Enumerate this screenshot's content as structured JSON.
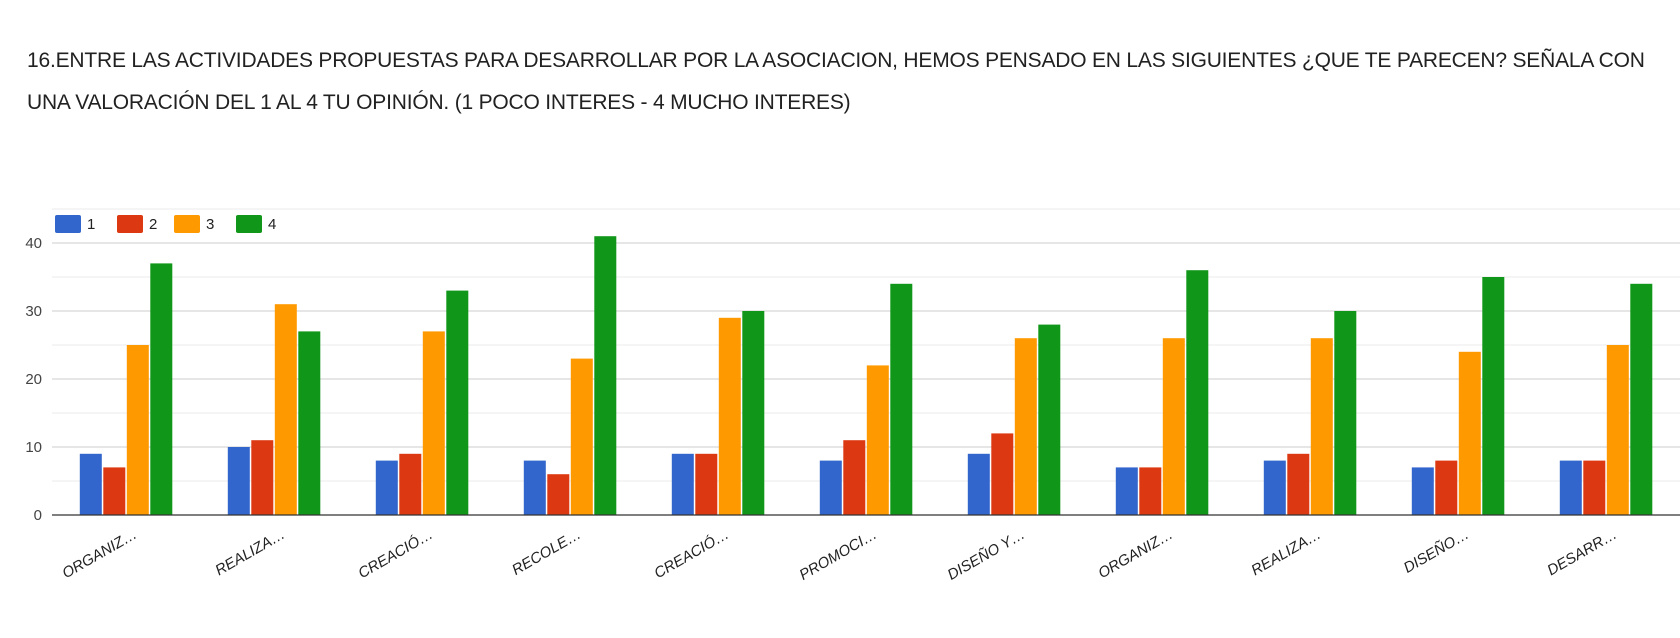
{
  "title": "16.ENTRE LAS ACTIVIDADES PROPUESTAS PARA DESARROLLAR POR LA ASOCIACION, HEMOS PENSADO EN LAS SIGUIENTES ¿QUE TE PARECEN? SEÑALA CON UNA VALORACIÓN  DEL 1 AL 4 TU OPINIÓN. (1 POCO INTERES - 4 MUCHO INTERES)",
  "chart_data": {
    "type": "bar",
    "title": "16.ENTRE LAS ACTIVIDADES PROPUESTAS PARA DESARROLLAR POR LA ASOCIACION, HEMOS PENSADO EN LAS SIGUIENTES ¿QUE TE PARECEN? SEÑALA CON UNA VALORACIÓN  DEL 1 AL 4 TU OPINIÓN. (1 POCO INTERES - 4 MUCHO INTERES)",
    "categories": [
      "ORGANIZ…",
      "REALIZA…",
      "CREACIÓ…",
      "RECOLE…",
      "CREACIÓ…",
      "PROMOCI…",
      "DISEÑO Y…",
      "ORGANIZ…",
      "REALIZA…",
      "DISEÑO…",
      "DESARR…"
    ],
    "series": [
      {
        "name": "1",
        "color": "#3366cc",
        "values": [
          9,
          10,
          8,
          8,
          9,
          8,
          9,
          7,
          8,
          7,
          8
        ]
      },
      {
        "name": "2",
        "color": "#dc3912",
        "values": [
          7,
          11,
          9,
          6,
          9,
          11,
          12,
          7,
          9,
          8,
          8
        ]
      },
      {
        "name": "3",
        "color": "#ff9900",
        "values": [
          25,
          31,
          27,
          23,
          29,
          22,
          26,
          26,
          26,
          24,
          25
        ]
      },
      {
        "name": "4",
        "color": "#109618",
        "values": [
          37,
          27,
          33,
          41,
          30,
          34,
          28,
          36,
          30,
          35,
          34
        ]
      }
    ],
    "yticks": [
      0,
      10,
      20,
      30,
      40
    ],
    "ylim": [
      0,
      45
    ],
    "grid": true,
    "legend_position": "top-left"
  }
}
